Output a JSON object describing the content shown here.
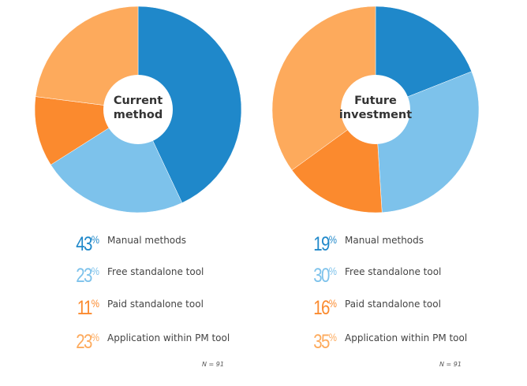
{
  "chart_data": [
    {
      "type": "pie",
      "center_title": [
        "Current",
        "method"
      ],
      "categories": [
        "Manual methods",
        "Free standalone tool",
        "Paid standalone tool",
        "Application within PM tool"
      ],
      "values": [
        43,
        23,
        11,
        23
      ],
      "value_suffix": "%",
      "colors": [
        "#1F88CA",
        "#7DC2EB",
        "#FB8A2E",
        "#FDAA5C"
      ],
      "note": "N = 91"
    },
    {
      "type": "pie",
      "center_title": [
        "Future",
        "investment"
      ],
      "categories": [
        "Manual methods",
        "Free standalone tool",
        "Paid standalone tool",
        "Application within PM tool"
      ],
      "values": [
        19,
        30,
        16,
        35
      ],
      "value_suffix": "%",
      "colors": [
        "#1F88CA",
        "#7DC2EB",
        "#FB8A2E",
        "#FDAA5C"
      ],
      "note": "N = 91"
    }
  ]
}
